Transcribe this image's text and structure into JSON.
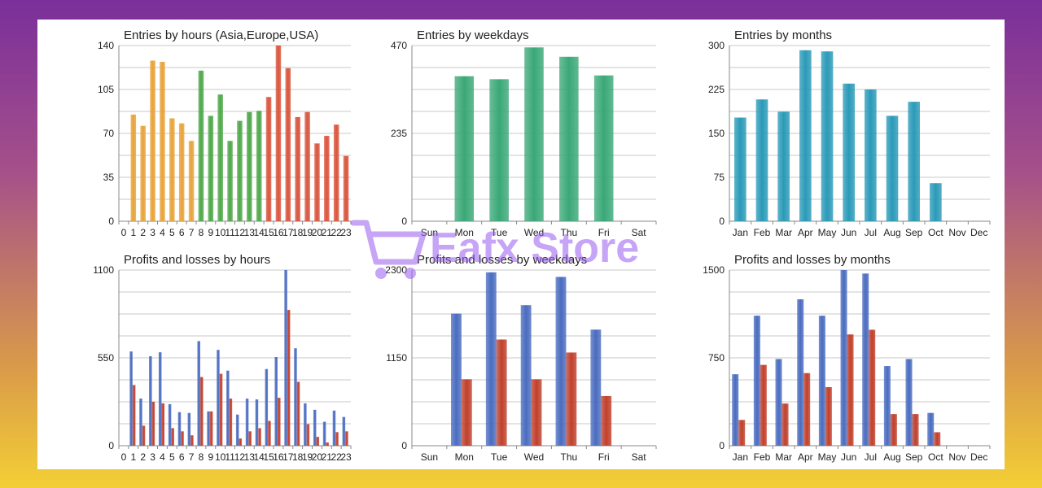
{
  "colors": {
    "gold": "#e8a33a",
    "green": "#4fa84a",
    "red": "#d9553d",
    "teal_green": "#3aa877",
    "teal_blue": "#2a9ab8",
    "blue": "#4a6cc0",
    "dark_red": "#c0402c",
    "grid": "#c8c8c8"
  },
  "watermark": {
    "text": "Eafx Store"
  },
  "chart_data": [
    {
      "id": "hours",
      "type": "bar",
      "title": "Entries by hours (Asia,Europe,USA)",
      "categories": [
        "0",
        "1",
        "2",
        "3",
        "4",
        "5",
        "6",
        "7",
        "8",
        "9",
        "10",
        "11",
        "12",
        "13",
        "14",
        "15",
        "16",
        "17",
        "18",
        "19",
        "20",
        "21",
        "22",
        "23"
      ],
      "values": [
        0,
        85,
        76,
        128,
        127,
        82,
        78,
        64,
        120,
        84,
        101,
        64,
        80,
        87,
        88,
        99,
        140,
        122,
        83,
        87,
        62,
        68,
        77,
        52
      ],
      "sessions": [
        "Asia",
        "Asia",
        "Asia",
        "Asia",
        "Asia",
        "Asia",
        "Asia",
        "Asia",
        "Europe",
        "Europe",
        "Europe",
        "Europe",
        "Europe",
        "Europe",
        "Europe",
        "USA",
        "USA",
        "USA",
        "USA",
        "USA",
        "USA",
        "USA",
        "USA",
        "USA"
      ],
      "ylim": [
        0,
        140
      ],
      "yticks": [
        0,
        35,
        70,
        105,
        140
      ],
      "grid": true
    },
    {
      "id": "weekdays",
      "type": "bar",
      "title": "Entries by weekdays",
      "categories": [
        "Sun",
        "Mon",
        "Tue",
        "Wed",
        "Thu",
        "Fri",
        "Sat"
      ],
      "values": [
        0,
        388,
        380,
        465,
        440,
        390,
        0
      ],
      "ylim": [
        0,
        470
      ],
      "yticks": [
        0,
        235,
        470
      ],
      "grid": true
    },
    {
      "id": "months",
      "type": "bar",
      "title": "Entries by months",
      "categories": [
        "Jan",
        "Feb",
        "Mar",
        "Apr",
        "May",
        "Jun",
        "Jul",
        "Aug",
        "Sep",
        "Oct",
        "Nov",
        "Dec"
      ],
      "values": [
        177,
        208,
        187,
        292,
        290,
        235,
        225,
        180,
        204,
        65,
        0,
        0
      ],
      "ylim": [
        0,
        300
      ],
      "yticks": [
        0,
        75,
        150,
        225,
        300
      ],
      "grid": true
    },
    {
      "id": "pl_hours",
      "type": "bar",
      "title": "Profits and losses by hours",
      "categories": [
        "0",
        "1",
        "2",
        "3",
        "4",
        "5",
        "6",
        "7",
        "8",
        "9",
        "10",
        "11",
        "12",
        "13",
        "14",
        "15",
        "16",
        "17",
        "18",
        "19",
        "20",
        "21",
        "22",
        "23"
      ],
      "series": [
        {
          "values": [
            0,
            590,
            295,
            560,
            585,
            260,
            210,
            205,
            655,
            215,
            600,
            470,
            195,
            295,
            290,
            480,
            555,
            1100,
            610,
            265,
            225,
            150,
            220,
            180
          ]
        },
        {
          "values": [
            0,
            380,
            125,
            275,
            265,
            110,
            90,
            65,
            430,
            215,
            450,
            295,
            45,
            90,
            110,
            155,
            300,
            850,
            400,
            135,
            55,
            20,
            85,
            90
          ]
        }
      ],
      "ylim": [
        0,
        1100
      ],
      "yticks": [
        0,
        550,
        1100
      ],
      "grid": true
    },
    {
      "id": "pl_weekdays",
      "type": "bar",
      "title": "Profits and losses by weekdays",
      "categories": [
        "Sun",
        "Mon",
        "Tue",
        "Wed",
        "Thu",
        "Fri",
        "Sat"
      ],
      "series": [
        {
          "values": [
            0,
            1730,
            2270,
            1840,
            2210,
            1520,
            0
          ]
        },
        {
          "values": [
            0,
            870,
            1390,
            870,
            1220,
            650,
            0
          ]
        }
      ],
      "ylim": [
        0,
        2300
      ],
      "yticks": [
        0,
        1150,
        2300
      ],
      "grid": true
    },
    {
      "id": "pl_months",
      "type": "bar",
      "title": "Profits and losses by months",
      "categories": [
        "Jan",
        "Feb",
        "Mar",
        "Apr",
        "May",
        "Jun",
        "Jul",
        "Aug",
        "Sep",
        "Oct",
        "Nov",
        "Dec"
      ],
      "series": [
        {
          "values": [
            610,
            1110,
            740,
            1250,
            1110,
            1500,
            1470,
            680,
            740,
            280,
            0,
            0
          ]
        },
        {
          "values": [
            220,
            690,
            360,
            620,
            500,
            950,
            990,
            270,
            270,
            115,
            0,
            0
          ]
        }
      ],
      "ylim": [
        0,
        1500
      ],
      "yticks": [
        0,
        750,
        1500
      ],
      "grid": true
    }
  ]
}
